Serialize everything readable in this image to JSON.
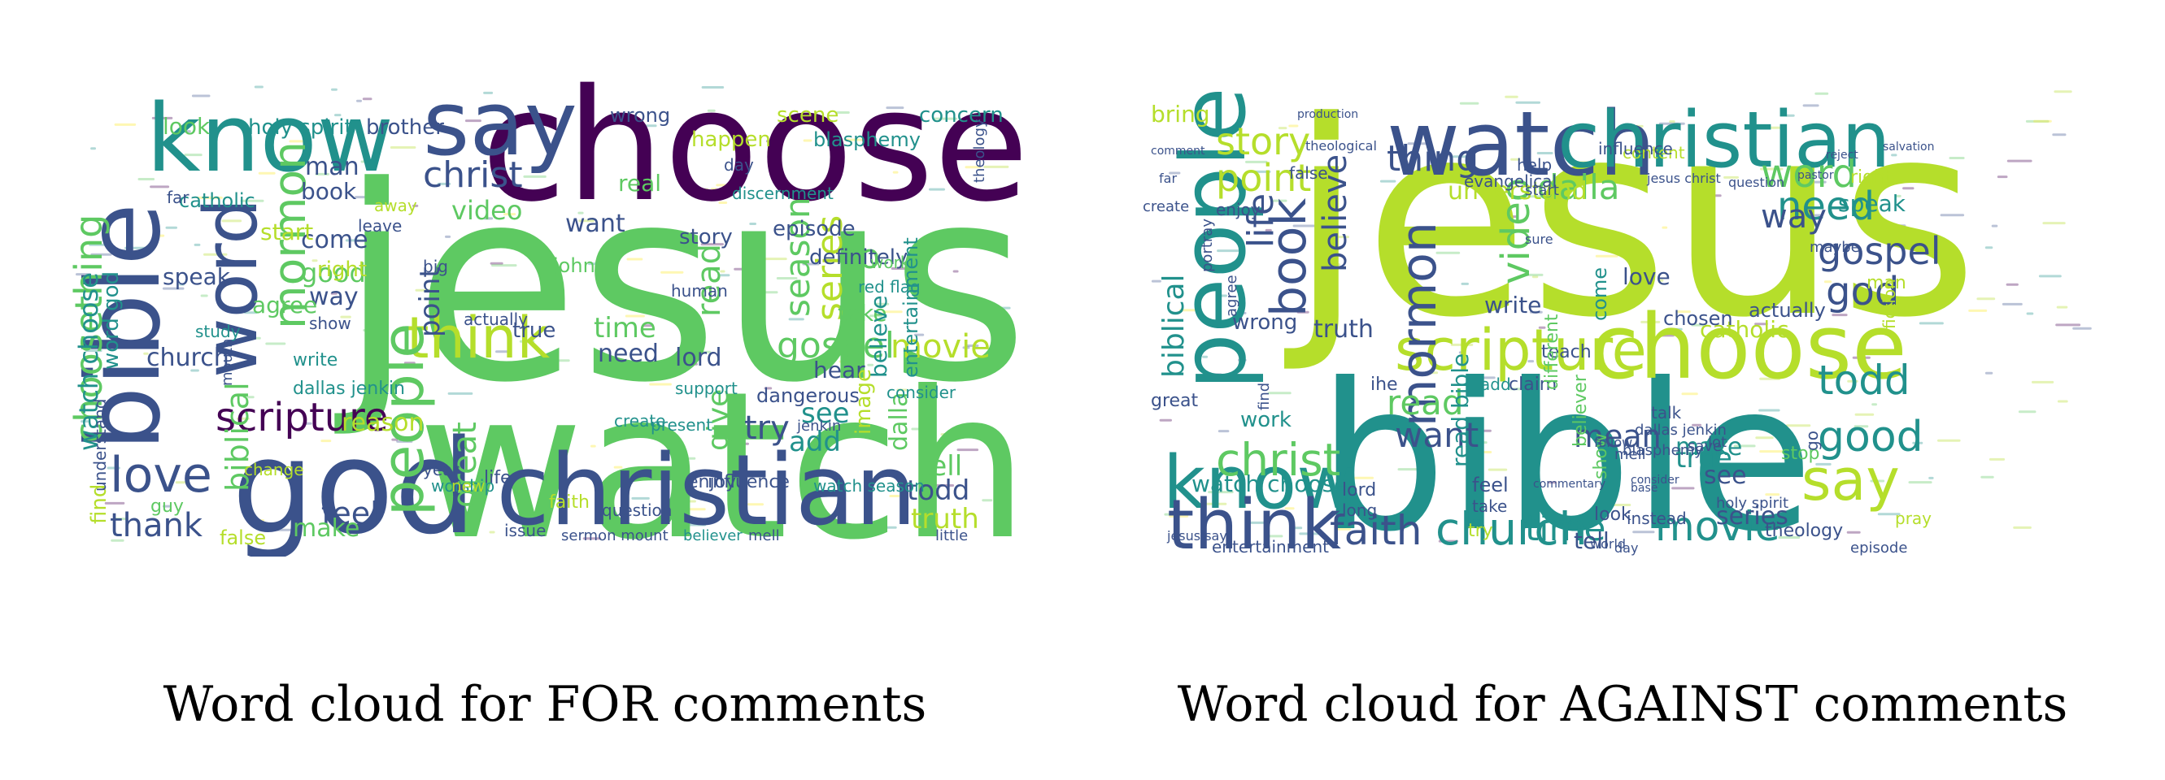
{
  "captions": {
    "for": "Word cloud for FOR comments",
    "against": "Word cloud for AGAINST comments"
  },
  "palette": [
    "#440154",
    "#3b528b",
    "#21918c",
    "#5ec962",
    "#b5de2b",
    "#fde725"
  ],
  "clouds": [
    {
      "id": "for",
      "words": [
        {
          "text": "jesus",
          "c": "#5ec962"
        },
        {
          "text": "watch",
          "c": "#5ec962"
        },
        {
          "text": "choose",
          "c": "#440154"
        },
        {
          "text": "christian",
          "c": "#3b528b"
        },
        {
          "text": "god",
          "c": "#3b528b"
        },
        {
          "text": "bible",
          "c": "#3b528b"
        },
        {
          "text": "know",
          "c": "#21918c"
        },
        {
          "text": "say",
          "c": "#3b528b"
        },
        {
          "text": "word",
          "c": "#3b528b"
        },
        {
          "text": "think",
          "c": "#b5de2b"
        },
        {
          "text": "people",
          "c": "#5ec962"
        },
        {
          "text": "love",
          "c": "#3b528b"
        },
        {
          "text": "choosething",
          "c": "#5ec962"
        },
        {
          "text": "scripture",
          "c": "#440154"
        },
        {
          "text": "christ",
          "c": "#3b528b"
        },
        {
          "text": "mormon",
          "c": "#5ec962"
        },
        {
          "text": "gospel",
          "c": "#5ec962"
        },
        {
          "text": "series",
          "c": "#b5de2b"
        },
        {
          "text": "season",
          "c": "#5ec962"
        },
        {
          "text": "movie",
          "c": "#b5de2b"
        },
        {
          "text": "read",
          "c": "#5ec962"
        },
        {
          "text": "thank",
          "c": "#3b528b"
        },
        {
          "text": "feel",
          "c": "#3b528b"
        },
        {
          "text": "great",
          "c": "#5ec962"
        },
        {
          "text": "give",
          "c": "#5ec962"
        },
        {
          "text": "todd",
          "c": "#3b528b"
        },
        {
          "text": "truth",
          "c": "#b5de2b"
        },
        {
          "text": "tell",
          "c": "#5ec962"
        },
        {
          "text": "church",
          "c": "#3b528b"
        },
        {
          "text": "biblical",
          "c": "#5ec962"
        },
        {
          "text": "video",
          "c": "#5ec962"
        },
        {
          "text": "time",
          "c": "#5ec962"
        },
        {
          "text": "need",
          "c": "#3b528b"
        },
        {
          "text": "lord",
          "c": "#3b528b"
        },
        {
          "text": "try",
          "c": "#3b528b"
        },
        {
          "text": "see",
          "c": "#21918c"
        },
        {
          "text": "add",
          "c": "#21918c"
        },
        {
          "text": "man",
          "c": "#3b528b"
        },
        {
          "text": "book",
          "c": "#3b528b"
        },
        {
          "text": "come",
          "c": "#3b528b"
        },
        {
          "text": "want",
          "c": "#3b528b"
        },
        {
          "text": "good",
          "c": "#5ec962"
        },
        {
          "text": "way",
          "c": "#3b528b"
        },
        {
          "text": "agree",
          "c": "#5ec962"
        },
        {
          "text": "make",
          "c": "#5ec962"
        },
        {
          "text": "point",
          "c": "#3b528b"
        },
        {
          "text": "go",
          "c": "#5ec962"
        },
        {
          "text": "take",
          "c": "#5ec962"
        },
        {
          "text": "hear",
          "c": "#3b528b"
        },
        {
          "text": "believe",
          "c": "#21918c"
        },
        {
          "text": "dalla",
          "c": "#5ec962"
        },
        {
          "text": "entertainment",
          "c": "#21918c"
        },
        {
          "text": "episode",
          "c": "#3b528b"
        },
        {
          "text": "definitely",
          "c": "#3b528b"
        },
        {
          "text": "concern",
          "c": "#21918c"
        },
        {
          "text": "blasphemy",
          "c": "#21918c"
        },
        {
          "text": "scene",
          "c": "#b5de2b"
        },
        {
          "text": "happen",
          "c": "#b5de2b"
        },
        {
          "text": "wrong",
          "c": "#3b528b"
        },
        {
          "text": "real",
          "c": "#5ec962"
        },
        {
          "text": "brother",
          "c": "#3b528b"
        },
        {
          "text": "holy spirit",
          "c": "#21918c"
        },
        {
          "text": "look",
          "c": "#5ec962"
        },
        {
          "text": "catholic",
          "c": "#21918c"
        },
        {
          "text": "speak",
          "c": "#3b528b"
        },
        {
          "text": "start",
          "c": "#b5de2b"
        },
        {
          "text": "right",
          "c": "#b5de2b"
        },
        {
          "text": "reason",
          "c": "#b5de2b"
        },
        {
          "text": "watch choose",
          "c": "#21918c"
        },
        {
          "text": "word god",
          "c": "#21918c"
        },
        {
          "text": "find",
          "c": "#b5de2b"
        },
        {
          "text": "show",
          "c": "#3b528b"
        },
        {
          "text": "write",
          "c": "#21918c"
        },
        {
          "text": "dallas jenkin",
          "c": "#21918c"
        },
        {
          "text": "life",
          "c": "#3b528b"
        },
        {
          "text": "true",
          "c": "#3b528b"
        },
        {
          "text": "john",
          "c": "#5ec962"
        },
        {
          "text": "story",
          "c": "#3b528b"
        },
        {
          "text": "image",
          "c": "#b5de2b"
        },
        {
          "text": "influence",
          "c": "#3b528b"
        },
        {
          "text": "false",
          "c": "#b5de2b"
        },
        {
          "text": "guy",
          "c": "#5ec962"
        },
        {
          "text": "question",
          "c": "#3b528b"
        },
        {
          "text": "worship",
          "c": "#21918c"
        },
        {
          "text": "watch season",
          "c": "#21918c"
        },
        {
          "text": "little",
          "c": "#3b528b"
        },
        {
          "text": "understand",
          "c": "#3b528b"
        },
        {
          "text": "actually",
          "c": "#3b528b"
        },
        {
          "text": "work",
          "c": "#5ec962"
        },
        {
          "text": "create",
          "c": "#21918c"
        },
        {
          "text": "present",
          "c": "#21918c"
        },
        {
          "text": "consider",
          "c": "#21918c"
        },
        {
          "text": "support",
          "c": "#21918c"
        },
        {
          "text": "enjoy",
          "c": "#3b528b"
        },
        {
          "text": "new",
          "c": "#b5de2b"
        },
        {
          "text": "year",
          "c": "#3b528b"
        },
        {
          "text": "issue",
          "c": "#3b528b"
        },
        {
          "text": "believer",
          "c": "#21918c"
        },
        {
          "text": "mell",
          "c": "#3b528b"
        },
        {
          "text": "sermon mount",
          "c": "#3b528b"
        },
        {
          "text": "theology",
          "c": "#3b528b"
        },
        {
          "text": "faith",
          "c": "#b5de2b"
        },
        {
          "text": "day",
          "c": "#3b528b"
        },
        {
          "text": "red flag",
          "c": "#21918c"
        },
        {
          "text": "human",
          "c": "#3b528b"
        },
        {
          "text": "big",
          "c": "#3b528b"
        },
        {
          "text": "study",
          "c": "#21918c"
        },
        {
          "text": "leave",
          "c": "#3b528b"
        },
        {
          "text": "far",
          "c": "#3b528b"
        },
        {
          "text": "change",
          "c": "#b5de2b"
        },
        {
          "text": "mouth",
          "c": "#3b528b"
        },
        {
          "text": "discernment",
          "c": "#21918c"
        },
        {
          "text": "jenkin",
          "c": "#3b528b"
        },
        {
          "text": "dangerous",
          "c": "#3b528b"
        },
        {
          "text": "away",
          "c": "#b5de2b"
        },
        {
          "text": "save",
          "c": "#3b528b"
        }
      ]
    },
    {
      "id": "against",
      "words": [
        {
          "text": "jesus",
          "c": "#b5de2b"
        },
        {
          "text": "bible",
          "c": "#21918c"
        },
        {
          "text": "watch",
          "c": "#3b528b"
        },
        {
          "text": "choose",
          "c": "#b5de2b"
        },
        {
          "text": "christian",
          "c": "#21918c"
        },
        {
          "text": "people",
          "c": "#21918c"
        },
        {
          "text": "know",
          "c": "#21918c"
        },
        {
          "text": "think",
          "c": "#3b528b"
        },
        {
          "text": "scripture",
          "c": "#b5de2b"
        },
        {
          "text": "church",
          "c": "#21918c"
        },
        {
          "text": "faith",
          "c": "#3b528b"
        },
        {
          "text": "christ",
          "c": "#5ec962"
        },
        {
          "text": "mormon",
          "c": "#3b528b"
        },
        {
          "text": "book",
          "c": "#3b528b"
        },
        {
          "text": "say",
          "c": "#b5de2b"
        },
        {
          "text": "movie",
          "c": "#21918c"
        },
        {
          "text": "time",
          "c": "#21918c"
        },
        {
          "text": "good",
          "c": "#21918c"
        },
        {
          "text": "todd",
          "c": "#21918c"
        },
        {
          "text": "need",
          "c": "#21918c"
        },
        {
          "text": "gospel",
          "c": "#3b528b"
        },
        {
          "text": "word",
          "c": "#5ec962"
        },
        {
          "text": "god",
          "c": "#3b528b"
        },
        {
          "text": "way",
          "c": "#3b528b"
        },
        {
          "text": "dalla",
          "c": "#5ec962"
        },
        {
          "text": "story",
          "c": "#b5de2b"
        },
        {
          "text": "point",
          "c": "#b5de2b"
        },
        {
          "text": "thing",
          "c": "#3b528b"
        },
        {
          "text": "video",
          "c": "#5ec962"
        },
        {
          "text": "life",
          "c": "#3b528b"
        },
        {
          "text": "believe",
          "c": "#3b528b"
        },
        {
          "text": "biblical",
          "c": "#21918c"
        },
        {
          "text": "read",
          "c": "#5ec962"
        },
        {
          "text": "want",
          "c": "#3b528b"
        },
        {
          "text": "mean",
          "c": "#3b528b"
        },
        {
          "text": "true",
          "c": "#21918c"
        },
        {
          "text": "make",
          "c": "#21918c"
        },
        {
          "text": "series",
          "c": "#3b528b"
        },
        {
          "text": "see",
          "c": "#3b528b"
        },
        {
          "text": "tell",
          "c": "#3b528b"
        },
        {
          "text": "love",
          "c": "#3b528b"
        },
        {
          "text": "write",
          "c": "#3b528b"
        },
        {
          "text": "truth",
          "c": "#3b528b"
        },
        {
          "text": "wrong",
          "c": "#3b528b"
        },
        {
          "text": "work",
          "c": "#21918c"
        },
        {
          "text": "watch choose",
          "c": "#21918c"
        },
        {
          "text": "read bible",
          "c": "#21918c"
        },
        {
          "text": "understand",
          "c": "#b5de2b"
        },
        {
          "text": "catholic",
          "c": "#b5de2b"
        },
        {
          "text": "speak",
          "c": "#21918c"
        },
        {
          "text": "chosen",
          "c": "#3b528b"
        },
        {
          "text": "actually",
          "c": "#3b528b"
        },
        {
          "text": "come",
          "c": "#21918c"
        },
        {
          "text": "bring",
          "c": "#b5de2b"
        },
        {
          "text": "entertainment",
          "c": "#3b528b"
        },
        {
          "text": "theology",
          "c": "#3b528b"
        },
        {
          "text": "lord",
          "c": "#3b528b"
        },
        {
          "text": "long",
          "c": "#3b528b"
        },
        {
          "text": "feel",
          "c": "#3b528b"
        },
        {
          "text": "take",
          "c": "#3b528b"
        },
        {
          "text": "try",
          "c": "#b5de2b"
        },
        {
          "text": "look",
          "c": "#3b528b"
        },
        {
          "text": "instead",
          "c": "#3b528b"
        },
        {
          "text": "teach",
          "c": "#3b528b"
        },
        {
          "text": "claim",
          "c": "#3b528b"
        },
        {
          "text": "talk",
          "c": "#3b528b"
        },
        {
          "text": "different",
          "c": "#5ec962"
        },
        {
          "text": "believer",
          "c": "#5ec962"
        },
        {
          "text": "show",
          "c": "#5ec962"
        },
        {
          "text": "holy spirit",
          "c": "#3b528b"
        },
        {
          "text": "content",
          "c": "#b5de2b"
        },
        {
          "text": "help",
          "c": "#3b528b"
        },
        {
          "text": "influence",
          "c": "#3b528b"
        },
        {
          "text": "evangelical",
          "c": "#3b528b"
        },
        {
          "text": "enjoy",
          "c": "#3b528b"
        },
        {
          "text": "portray",
          "c": "#3b528b"
        },
        {
          "text": "great",
          "c": "#3b528b"
        },
        {
          "text": "fiction",
          "c": "#b5de2b"
        },
        {
          "text": "maybe",
          "c": "#3b528b"
        },
        {
          "text": "right",
          "c": "#b5de2b"
        },
        {
          "text": "jesus christ",
          "c": "#3b528b"
        },
        {
          "text": "dallas jenkin",
          "c": "#3b528b"
        },
        {
          "text": "blasphemy",
          "c": "#3b528b"
        },
        {
          "text": "save",
          "c": "#3b528b"
        },
        {
          "text": "stop",
          "c": "#5ec962"
        },
        {
          "text": "day",
          "c": "#3b528b"
        },
        {
          "text": "episode",
          "c": "#3b528b"
        },
        {
          "text": "pray",
          "c": "#b5de2b"
        },
        {
          "text": "go",
          "c": "#3b528b"
        },
        {
          "text": "jesus say",
          "c": "#3b528b"
        },
        {
          "text": "man",
          "c": "#b5de2b"
        },
        {
          "text": "false",
          "c": "#3b528b"
        },
        {
          "text": "create",
          "c": "#3b528b"
        },
        {
          "text": "sure",
          "c": "#3b528b"
        },
        {
          "text": "start",
          "c": "#3b528b"
        },
        {
          "text": "ihe",
          "c": "#3b528b"
        },
        {
          "text": "add",
          "c": "#21918c"
        },
        {
          "text": "find",
          "c": "#3b528b"
        },
        {
          "text": "agree",
          "c": "#3b528b"
        },
        {
          "text": "mell",
          "c": "#3b528b"
        },
        {
          "text": "lot",
          "c": "#3b528b"
        },
        {
          "text": "world",
          "c": "#3b528b"
        },
        {
          "text": "follow",
          "c": "#3b528b"
        },
        {
          "text": "theological",
          "c": "#3b528b"
        },
        {
          "text": "production",
          "c": "#3b528b"
        },
        {
          "text": "salvation",
          "c": "#3b528b"
        },
        {
          "text": "pastor",
          "c": "#3b528b"
        },
        {
          "text": "reject",
          "c": "#3b528b"
        },
        {
          "text": "commentary",
          "c": "#3b528b"
        },
        {
          "text": "question",
          "c": "#3b528b"
        },
        {
          "text": "far",
          "c": "#3b528b"
        },
        {
          "text": "comment",
          "c": "#3b528b"
        },
        {
          "text": "base",
          "c": "#3b528b"
        },
        {
          "text": "consider",
          "c": "#3b528b"
        }
      ]
    }
  ]
}
